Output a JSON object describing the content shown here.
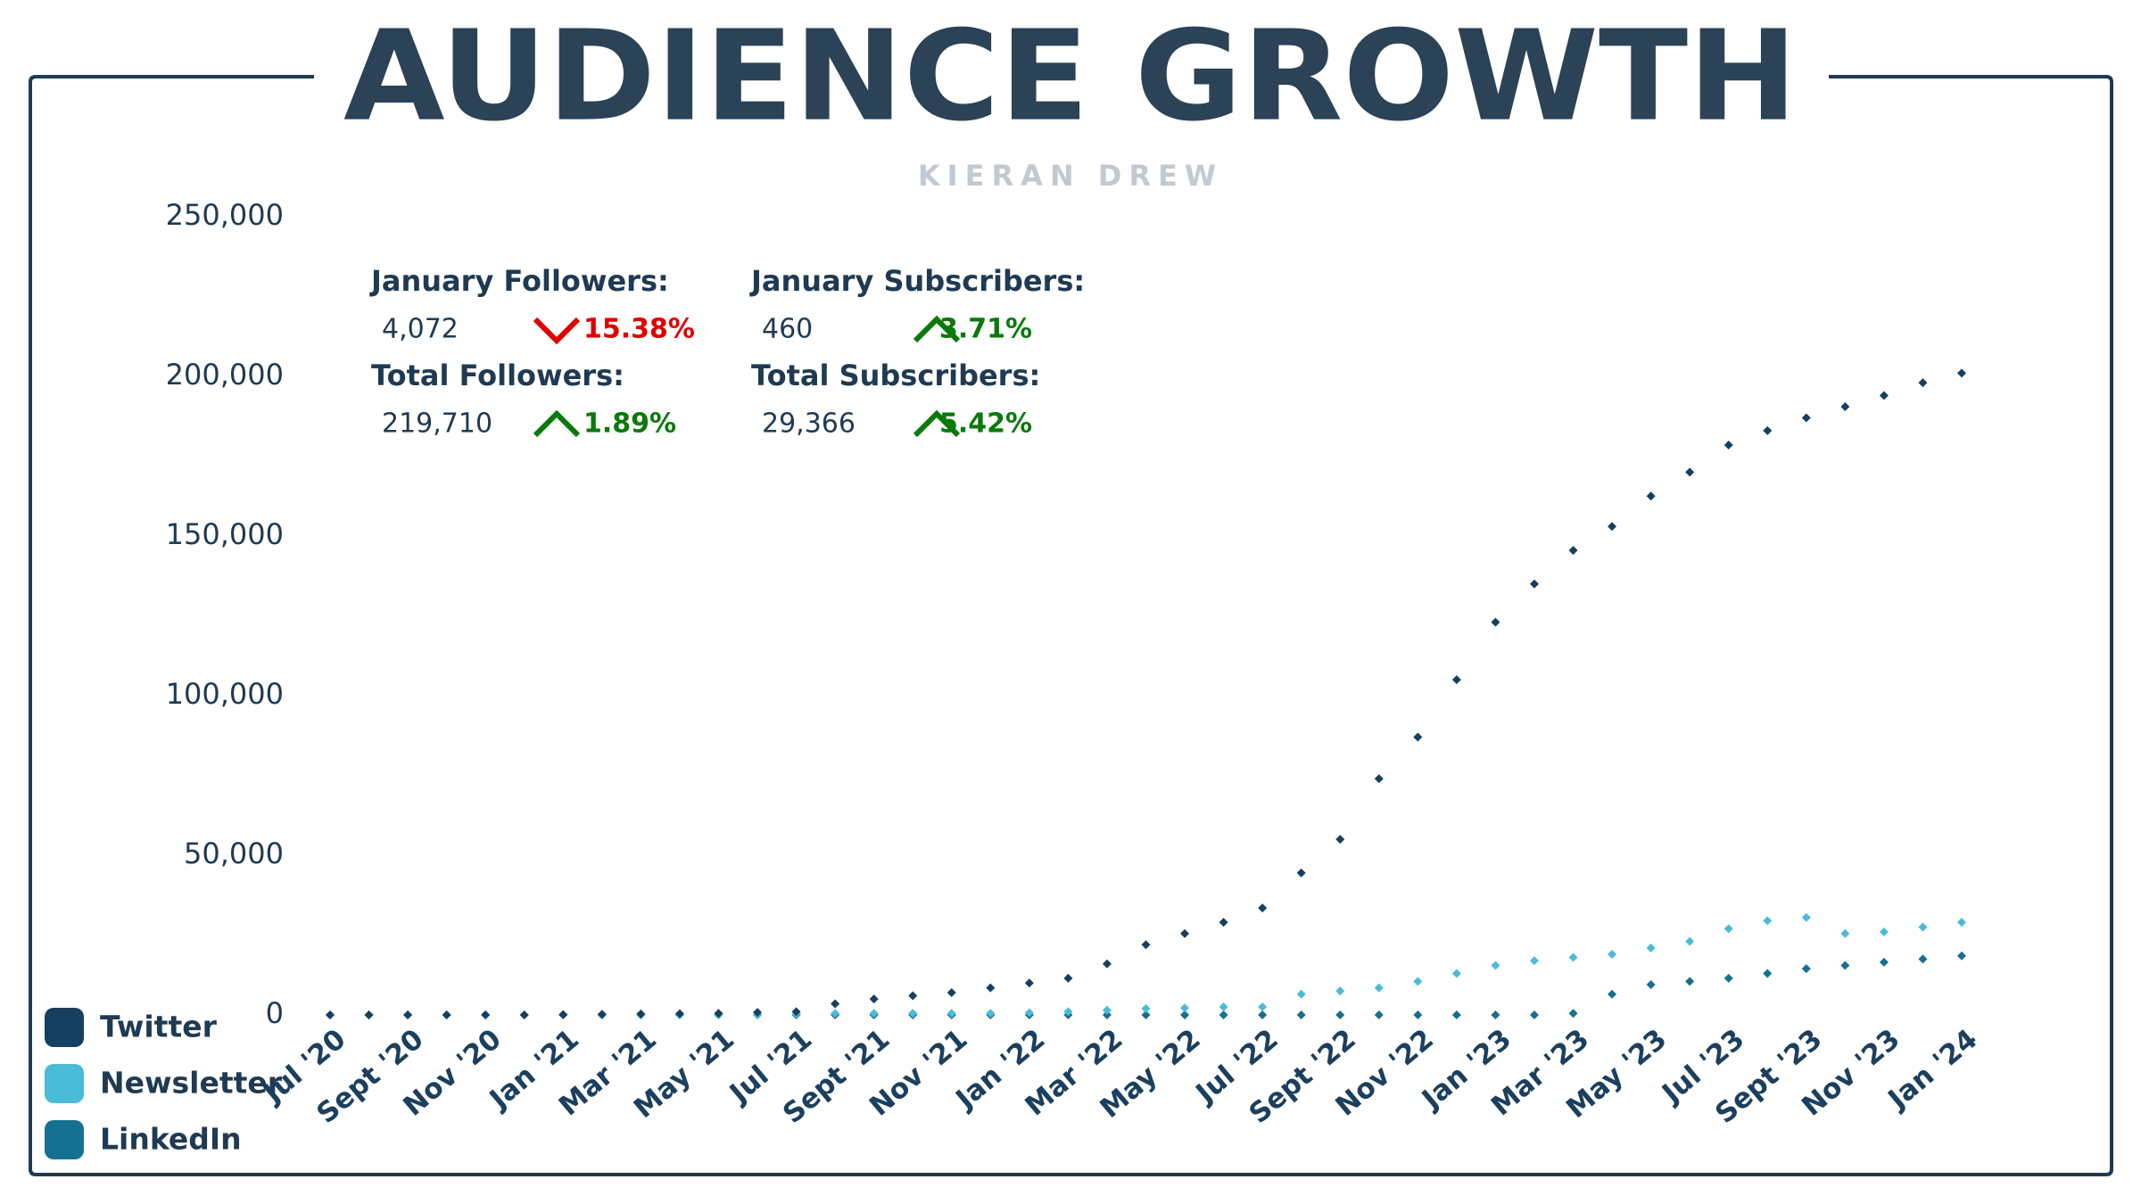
{
  "chart_data": {
    "type": "line",
    "title": "AUDIENCE GROWTH",
    "subtitle": "KIERAN DREW",
    "categories": [
      "Jul '20",
      null,
      "Sept '20",
      null,
      "Nov '20",
      null,
      "Jan '21",
      null,
      "Mar '21",
      null,
      "May '21",
      null,
      "Jul '21",
      null,
      "Sept '21",
      null,
      "Nov '21",
      null,
      "Jan '22",
      null,
      "Mar '22",
      null,
      "May '22",
      null,
      "Jul '22",
      null,
      "Sept '22",
      null,
      "Nov '22",
      null,
      "Jan '23",
      null,
      "Mar '23",
      null,
      "May '23",
      null,
      "Jul '23",
      null,
      "Sept '23",
      null,
      "Nov '23",
      null,
      "Jan '24"
    ],
    "series": [
      {
        "name": "Twitter",
        "color": "#173f5f",
        "values": [
          0,
          0,
          0,
          0,
          0,
          0,
          100,
          200,
          300,
          400,
          500,
          800,
          1000,
          3500,
          5000,
          6000,
          7000,
          8500,
          10000,
          11500,
          16000,
          22000,
          25500,
          29000,
          33500,
          44500,
          55000,
          74000,
          87000,
          105000,
          123000,
          135000,
          145500,
          153000,
          162500,
          170000,
          178500,
          183000,
          187000,
          190500,
          194000,
          198000,
          201000
        ]
      },
      {
        "name": "Newsletter",
        "color": "#4bbcd8",
        "values": [
          0,
          0,
          0,
          0,
          0,
          0,
          100,
          100,
          100,
          100,
          100,
          100,
          300,
          500,
          500,
          500,
          500,
          500,
          700,
          1000,
          1500,
          2000,
          2200,
          2500,
          2500,
          6500,
          7500,
          8500,
          10500,
          13000,
          15500,
          17000,
          18000,
          19000,
          21000,
          23000,
          27000,
          29500,
          30500,
          25500,
          26000,
          27500,
          29000
        ]
      },
      {
        "name": "LinkedIn",
        "color": "#16708f",
        "values": [
          0,
          0,
          0,
          0,
          0,
          0,
          0,
          0,
          0,
          0,
          0,
          0,
          0,
          0,
          0,
          0,
          0,
          0,
          0,
          0,
          0,
          0,
          0,
          0,
          0,
          0,
          0,
          0,
          0,
          0,
          0,
          0,
          500,
          6500,
          9500,
          10500,
          11500,
          13000,
          14500,
          15500,
          16500,
          17500,
          18500
        ]
      }
    ],
    "ylim": [
      0,
      250000
    ],
    "yticks": [
      0,
      {
        "value": 50000,
        "label": "50,000"
      },
      {
        "value": 100000,
        "label": "100,000"
      },
      {
        "value": 150000,
        "label": "150,000"
      },
      {
        "value": 200000,
        "label": "200,000"
      },
      {
        "value": 250000,
        "label": "250,000"
      }
    ],
    "grid": false,
    "legend": "bottom-left"
  },
  "stats": [
    {
      "label": "January Followers:",
      "value": "4,072",
      "change": "15.38%",
      "color": "#e00000"
    },
    {
      "label": "January Subscribers:",
      "value": "460",
      "change": "3.71%",
      "color": "#0a7a0a"
    },
    {
      "label": "Total Followers:",
      "value": "219,710",
      "change": "1.89%",
      "color": "#0a7a0a"
    },
    {
      "label": "Total Subscribers:",
      "value": "29,366",
      "change": "5.42%",
      "color": "#0a7a0a"
    }
  ]
}
